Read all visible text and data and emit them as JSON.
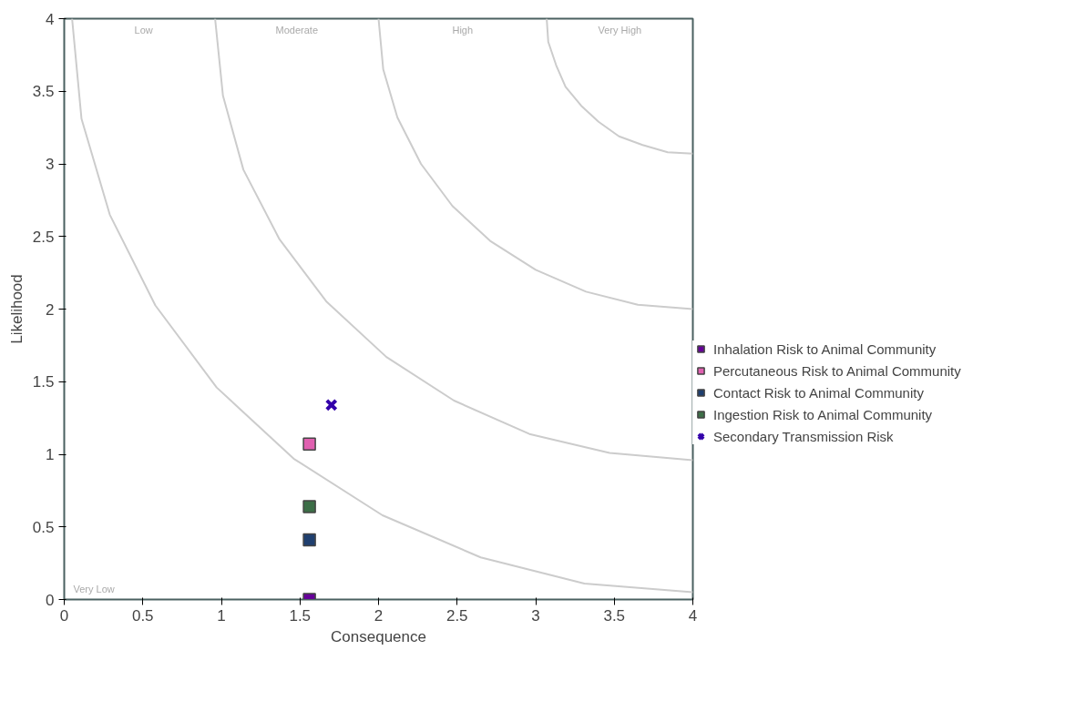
{
  "chart_data": {
    "type": "scatter",
    "xlabel": "Consequence",
    "ylabel": "Likelihood",
    "xlim": [
      0,
      4
    ],
    "ylim": [
      0,
      4
    ],
    "xticks": [
      0,
      0.5,
      1,
      1.5,
      2,
      2.5,
      3,
      3.5,
      4
    ],
    "yticks": [
      0,
      0.5,
      1,
      1.5,
      2,
      2.5,
      3,
      3.5,
      4
    ],
    "grid": false,
    "legend": "right",
    "annotations": [
      "Very Low",
      "Low",
      "Moderate",
      "High",
      "Very High"
    ],
    "series": [
      {
        "type": "line",
        "color": "#cccccc",
        "marker": "none",
        "x": [
          0.05,
          0.11,
          0.29,
          0.58,
          0.97,
          1.46,
          2.025,
          2.65,
          3.31,
          4
        ],
        "values": [
          4,
          3.31,
          2.65,
          2.025,
          1.46,
          0.97,
          0.58,
          0.29,
          0.11,
          0.05
        ]
      },
      {
        "type": "line",
        "color": "#cccccc",
        "marker": "none",
        "x": [
          0.96,
          1.01,
          1.14,
          1.37,
          1.67,
          2.05,
          2.48,
          2.96,
          3.47,
          4
        ],
        "values": [
          4,
          3.47,
          2.96,
          2.48,
          2.05,
          1.67,
          1.37,
          1.14,
          1.01,
          0.96
        ]
      },
      {
        "type": "line",
        "color": "#cccccc",
        "marker": "none",
        "x": [
          2,
          2.03,
          2.12,
          2.27,
          2.47,
          2.71,
          3,
          3.32,
          3.65,
          4
        ],
        "values": [
          4,
          3.65,
          3.32,
          3,
          2.71,
          2.47,
          2.27,
          2.12,
          2.03,
          2
        ]
      },
      {
        "type": "line",
        "color": "#cccccc",
        "marker": "none",
        "x": [
          3.07,
          3.08,
          3.13,
          3.19,
          3.29,
          3.4,
          3.53,
          3.68,
          3.84,
          4
        ],
        "values": [
          4,
          3.84,
          3.68,
          3.53,
          3.4,
          3.29,
          3.19,
          3.13,
          3.08,
          3.07
        ]
      },
      {
        "name": "Inhalation Risk to Animal Community",
        "color": "#660099",
        "marker": "square",
        "x": [
          1.56
        ],
        "values": [
          0
        ]
      },
      {
        "name": "Percutaneous Risk to Animal Community",
        "color": "#e060b0",
        "marker": "square",
        "x": [
          1.56
        ],
        "values": [
          1.07
        ]
      },
      {
        "name": "Contact Risk to Animal Community",
        "color": "#1f3f6f",
        "marker": "square",
        "x": [
          1.56
        ],
        "values": [
          0.41
        ]
      },
      {
        "name": "Ingestion Risk to Animal Community",
        "color": "#3c6e47",
        "marker": "square",
        "x": [
          1.56
        ],
        "values": [
          0.64
        ]
      },
      {
        "name": "Secondary Transmission Risk",
        "color": "#3300aa",
        "marker": "cross",
        "x": [
          1.7
        ],
        "values": [
          1.34
        ]
      }
    ]
  }
}
